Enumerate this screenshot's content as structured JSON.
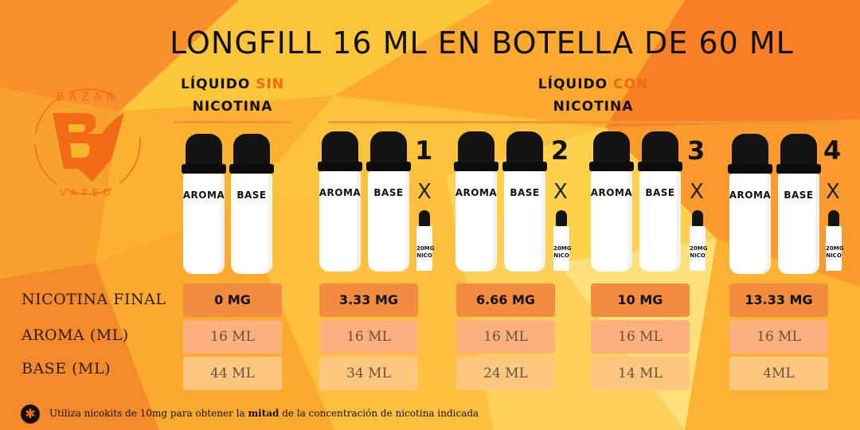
{
  "title": "LONGFILL 16 ML EN BOTELLA DE 60 ML",
  "logo": {
    "top_text": "BAZAR",
    "bottom_text": "VAPEO",
    "mark": "BV"
  },
  "groups": {
    "sin": {
      "pre": "LÍQUIDO ",
      "hl": "SIN",
      "post": "NICOTINA"
    },
    "con": {
      "pre": "LÍQUIDO ",
      "hl": "CON",
      "post": "NICOTINA"
    }
  },
  "bottle_labels": {
    "aroma": "AROMA",
    "base": "BASE",
    "nicokit_line1": "20MG",
    "nicokit_line2": "NICO"
  },
  "multiplier_symbol": "X",
  "options": [
    {
      "count": "",
      "nicotina": "0 MG",
      "aroma": "16 ML",
      "base": "44 ML"
    },
    {
      "count": "1",
      "nicotina": "3.33 MG",
      "aroma": "16 ML",
      "base": "34 ML"
    },
    {
      "count": "2",
      "nicotina": "6.66 MG",
      "aroma": "16 ML",
      "base": "24 ML"
    },
    {
      "count": "3",
      "nicotina": "10 MG",
      "aroma": "16 ML",
      "base": "14 ML"
    },
    {
      "count": "4",
      "nicotina": "13.33 MG",
      "aroma": "16 ML",
      "base": "4ML"
    }
  ],
  "row_labels": {
    "nicotina": "NICOTINA FINAL",
    "aroma": "AROMA (ML)",
    "base": "BASE (ML)"
  },
  "footer": {
    "pre": "Utiliza nicokits de 10mg para obtener la ",
    "bold": "mitad",
    "post": " de la concentración de nicotina indicada",
    "icon": "✱"
  },
  "colors": {
    "accent": "#f0690f",
    "nic_cell": "#f28c3f",
    "aroma_cell": "#fbb07d",
    "base_cell": "#fcc880"
  }
}
